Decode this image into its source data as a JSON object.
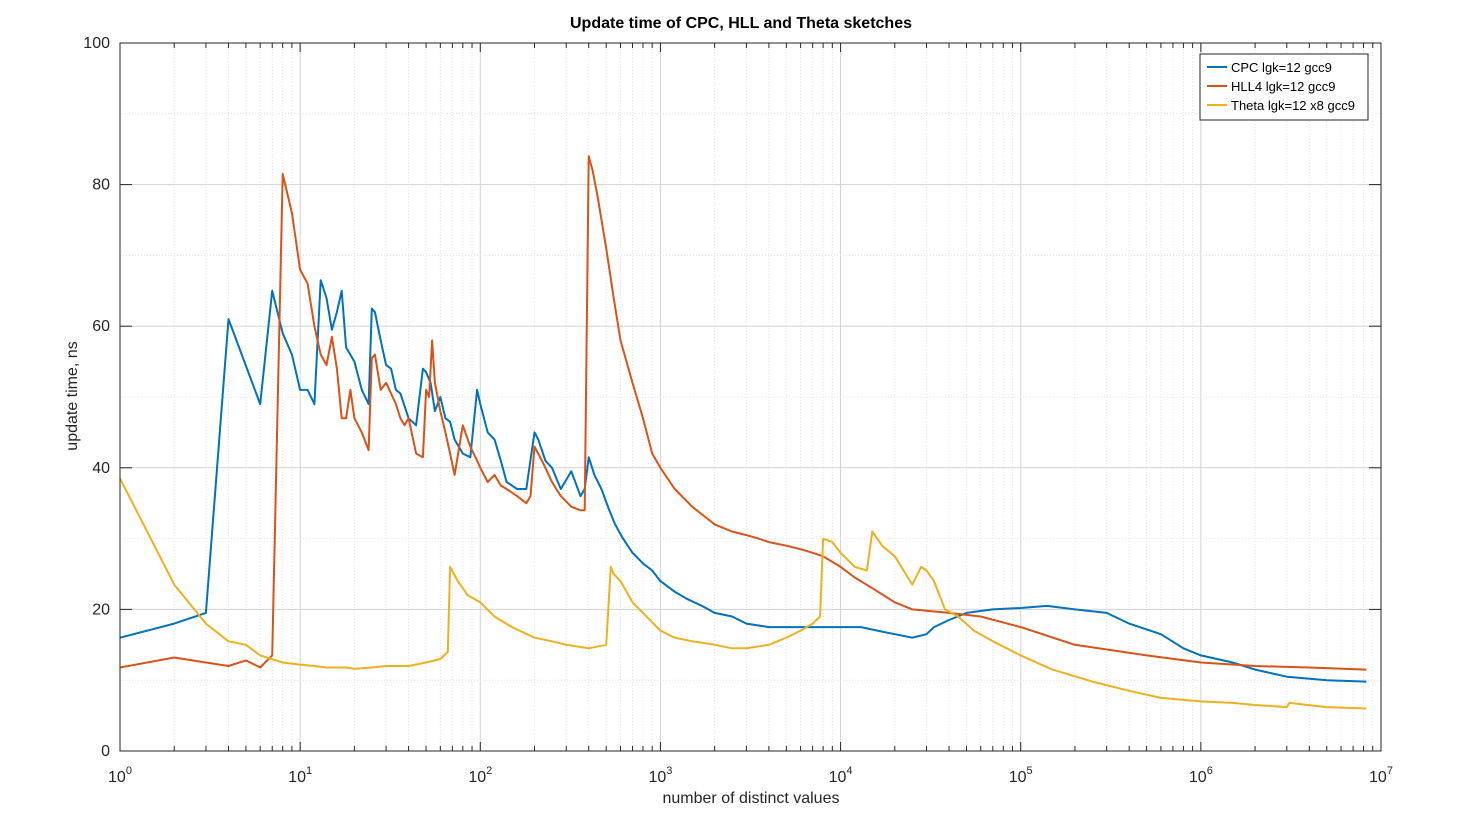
{
  "chart_data": {
    "type": "line",
    "title": "Update time of CPC, HLL and Theta sketches",
    "xlabel": "number of distinct values",
    "ylabel": "update time, ns",
    "xscale": "log",
    "xlim": [
      1,
      10000000
    ],
    "ylim": [
      0,
      100
    ],
    "grid": true,
    "legend_position": "top-right",
    "x_ticks": [
      {
        "base": "10",
        "exp": "0"
      },
      {
        "base": "10",
        "exp": "1"
      },
      {
        "base": "10",
        "exp": "2"
      },
      {
        "base": "10",
        "exp": "3"
      },
      {
        "base": "10",
        "exp": "4"
      },
      {
        "base": "10",
        "exp": "5"
      },
      {
        "base": "10",
        "exp": "6"
      },
      {
        "base": "10",
        "exp": "7"
      }
    ],
    "y_ticks": [
      "0",
      "20",
      "40",
      "60",
      "80",
      "100"
    ],
    "series": [
      {
        "name": "CPC lgk=12 gcc9",
        "color": "#0072BD",
        "x": [
          1,
          2,
          3,
          4,
          6,
          7,
          8,
          9,
          10,
          11,
          12,
          13,
          14,
          15,
          16,
          17,
          18,
          20,
          22,
          24,
          25,
          26,
          28,
          30,
          32,
          34,
          36,
          40,
          44,
          48,
          50,
          53,
          56,
          60,
          64,
          68,
          72,
          80,
          88,
          96,
          100,
          110,
          120,
          130,
          140,
          160,
          180,
          200,
          210,
          230,
          250,
          280,
          320,
          360,
          380,
          400,
          430,
          470,
          520,
          560,
          620,
          700,
          800,
          900,
          1000,
          1200,
          1400,
          1700,
          2000,
          2500,
          3000,
          4000,
          5000,
          6000,
          7000,
          8000,
          10000,
          13000,
          16000,
          20000,
          25000,
          30000,
          33000,
          40000,
          50000,
          70000,
          100000,
          140000,
          200000,
          300000,
          400000,
          600000,
          800000,
          1000000,
          1500000,
          2000000,
          3000000,
          5000000,
          8300000
        ],
        "y": [
          16,
          18,
          19.5,
          61,
          49,
          65,
          59,
          56,
          51,
          51,
          49,
          66.5,
          64,
          59.5,
          62,
          65,
          57,
          55,
          51,
          49,
          62.5,
          62,
          58,
          54.5,
          54,
          51,
          50.5,
          47,
          46,
          54,
          53.5,
          52,
          48,
          50,
          47,
          46.5,
          44,
          42,
          41.5,
          51,
          49,
          45,
          44,
          41,
          38,
          37,
          37,
          45,
          44,
          41,
          40,
          37,
          39.5,
          36,
          37,
          41.5,
          39,
          37,
          34,
          32,
          30,
          28,
          26.5,
          25.5,
          24,
          22.5,
          21.5,
          20.5,
          19.5,
          19,
          18,
          17.5,
          17.5,
          17.5,
          17.5,
          17.5,
          17.5,
          17.5,
          17,
          16.5,
          16,
          16.5,
          17.5,
          18.5,
          19.5,
          20,
          20.2,
          20.5,
          20,
          19.5,
          18,
          16.5,
          14.5,
          13.5,
          12.5,
          11.5,
          10.5,
          10,
          9.8
        ]
      },
      {
        "name": "HLL4 lgk=12 gcc9",
        "color": "#D95319",
        "x": [
          1,
          2,
          3,
          4,
          5,
          6,
          7,
          8,
          9,
          10,
          11,
          12,
          13,
          14,
          15,
          16,
          17,
          18,
          19,
          20,
          22,
          24,
          25,
          26,
          28,
          30,
          32,
          34,
          36,
          38,
          40,
          44,
          48,
          50,
          52,
          54,
          56,
          60,
          64,
          68,
          72,
          80,
          88,
          96,
          100,
          110,
          120,
          130,
          140,
          160,
          180,
          190,
          200,
          220,
          250,
          280,
          320,
          360,
          380,
          400,
          420,
          450,
          500,
          550,
          600,
          700,
          800,
          900,
          1000,
          1200,
          1500,
          2000,
          2500,
          3000,
          3500,
          4000,
          5000,
          6000,
          7000,
          8000,
          10000,
          12000,
          15000,
          20000,
          25000,
          30000,
          40000,
          60000,
          100000,
          200000,
          500000,
          1000000,
          2000000,
          4000000,
          8300000
        ],
        "y": [
          11.8,
          13.2,
          12.5,
          12,
          12.8,
          11.8,
          13.5,
          81.5,
          76,
          68,
          66,
          60,
          56,
          54.5,
          58.5,
          54,
          47,
          47,
          51,
          47,
          45,
          42.5,
          55.5,
          56,
          51,
          52,
          50.5,
          49,
          47,
          46,
          47,
          42,
          41.5,
          51,
          50,
          58,
          52,
          48,
          45,
          42,
          39,
          46,
          43,
          41,
          40,
          38,
          39,
          37.5,
          37,
          36,
          35,
          36,
          43,
          41,
          38,
          36,
          34.5,
          34,
          34,
          84,
          82,
          78,
          71,
          64,
          58,
          52,
          47,
          42,
          40,
          37,
          34.5,
          32,
          31,
          30.5,
          30,
          29.5,
          29,
          28.5,
          28,
          27.5,
          26,
          24.5,
          23,
          21,
          20,
          19.8,
          19.5,
          19,
          17.5,
          15,
          13.5,
          12.5,
          12,
          11.8,
          11.5
        ]
      },
      {
        "name": "Theta lgk=12 x8 gcc9",
        "color": "#EDB120",
        "x": [
          1,
          2,
          3,
          4,
          5,
          6,
          8,
          10,
          12,
          14,
          16,
          18,
          20,
          25,
          30,
          40,
          50,
          60,
          66,
          68,
          75,
          85,
          100,
          120,
          150,
          200,
          250,
          300,
          400,
          500,
          530,
          550,
          600,
          700,
          800,
          1000,
          1200,
          1500,
          2000,
          2500,
          3000,
          4000,
          5000,
          6000,
          7000,
          7700,
          8000,
          9000,
          10000,
          12000,
          14000,
          15000,
          17000,
          20000,
          25000,
          28000,
          30000,
          33000,
          38000,
          45000,
          55000,
          70000,
          100000,
          150000,
          250000,
          400000,
          600000,
          1000000,
          1500000,
          2000000,
          3000000,
          3100000,
          5000000,
          8300000
        ],
        "y": [
          38.5,
          23.5,
          18,
          15.5,
          15,
          13.5,
          12.5,
          12.2,
          12,
          11.8,
          11.8,
          11.8,
          11.6,
          11.8,
          12,
          12,
          12.5,
          13,
          14,
          26,
          24,
          22,
          21,
          19,
          17.5,
          16,
          15.5,
          15,
          14.5,
          15,
          26,
          25,
          24,
          21,
          19.5,
          17,
          16,
          15.5,
          15,
          14.5,
          14.5,
          15,
          16,
          17,
          18,
          19,
          30,
          29.5,
          28,
          26,
          25.5,
          31,
          29,
          27.5,
          23.5,
          26,
          25.5,
          24,
          20,
          19,
          17,
          15.5,
          13.5,
          11.5,
          9.8,
          8.5,
          7.5,
          7,
          6.8,
          6.5,
          6.2,
          6.8,
          6.2,
          6
        ]
      }
    ]
  }
}
